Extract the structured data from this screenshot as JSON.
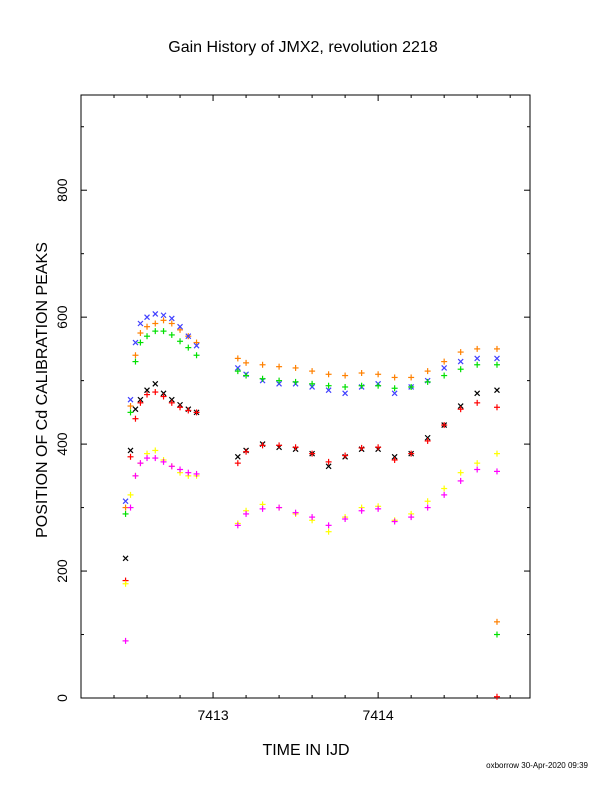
{
  "chart_data": {
    "type": "scatter",
    "title": "Gain History of JMX2, revolution 2218",
    "xlabel": "TIME IN IJD",
    "ylabel": "POSITION OF Cd CALIBRATION PEAKS",
    "footer": "oxborrow 30-Apr-2020 09:39",
    "xlim": [
      7412.2,
      7414.92
    ],
    "ylim": [
      0,
      950
    ],
    "x_ticks": [
      7413,
      7414
    ],
    "x_tick_labels": [
      "7413",
      "7414"
    ],
    "y_ticks": [
      0,
      200,
      400,
      600,
      800
    ],
    "y_tick_labels": [
      "0",
      "200",
      "400",
      "600",
      "800"
    ],
    "grid": false,
    "legend": "none",
    "series": [
      {
        "color": "#ff8000",
        "marker": "+",
        "x": [
          7412.47,
          7412.5,
          7412.53,
          7412.56,
          7412.6,
          7412.65,
          7412.7,
          7412.75,
          7412.8,
          7412.85,
          7412.9,
          7413.15,
          7413.2,
          7413.3,
          7413.4,
          7413.5,
          7413.6,
          7413.7,
          7413.8,
          7413.9,
          7414.0,
          7414.1,
          7414.2,
          7414.3,
          7414.4,
          7414.5,
          7414.6,
          7414.72
        ],
        "y": [
          300,
          460,
          540,
          575,
          585,
          590,
          595,
          590,
          580,
          570,
          560,
          535,
          528,
          525,
          522,
          520,
          515,
          510,
          508,
          512,
          510,
          505,
          505,
          515,
          530,
          545,
          550,
          550
        ]
      },
      {
        "color": "#4040ff",
        "marker": "x",
        "x": [
          7412.47,
          7412.5,
          7412.53,
          7412.56,
          7412.6,
          7412.65,
          7412.7,
          7412.75,
          7412.8,
          7412.85,
          7412.9,
          7413.15,
          7413.2,
          7413.3,
          7413.4,
          7413.5,
          7413.6,
          7413.7,
          7413.8,
          7413.9,
          7414.0,
          7414.1,
          7414.2,
          7414.3,
          7414.4,
          7414.5,
          7414.6,
          7414.72
        ],
        "y": [
          310,
          470,
          560,
          590,
          600,
          605,
          603,
          598,
          585,
          570,
          555,
          520,
          510,
          500,
          495,
          495,
          490,
          485,
          480,
          490,
          495,
          480,
          490,
          500,
          520,
          530,
          535,
          535
        ]
      },
      {
        "color": "#00e000",
        "marker": "+",
        "x": [
          7412.47,
          7412.5,
          7412.53,
          7412.56,
          7412.6,
          7412.65,
          7412.7,
          7412.75,
          7412.8,
          7412.85,
          7412.9,
          7413.15,
          7413.2,
          7413.3,
          7413.4,
          7413.5,
          7413.6,
          7413.7,
          7413.8,
          7413.9,
          7414.0,
          7414.1,
          7414.2,
          7414.3,
          7414.4,
          7414.5,
          7414.6,
          7414.72
        ],
        "y": [
          290,
          450,
          530,
          560,
          570,
          578,
          578,
          572,
          562,
          552,
          540,
          515,
          508,
          503,
          500,
          498,
          495,
          492,
          490,
          492,
          492,
          488,
          490,
          498,
          508,
          518,
          525,
          525
        ]
      },
      {
        "color": "#000000",
        "marker": "x",
        "x": [
          7412.47,
          7412.5,
          7412.53,
          7412.56,
          7412.6,
          7412.65,
          7412.7,
          7412.75,
          7412.8,
          7412.85,
          7412.9,
          7413.15,
          7413.2,
          7413.3,
          7413.4,
          7413.5,
          7413.6,
          7413.7,
          7413.8,
          7413.9,
          7414.0,
          7414.1,
          7414.2,
          7414.3,
          7414.4,
          7414.5,
          7414.6,
          7414.72
        ],
        "y": [
          220,
          390,
          455,
          470,
          485,
          495,
          480,
          470,
          462,
          455,
          450,
          380,
          390,
          400,
          395,
          392,
          385,
          365,
          380,
          392,
          392,
          380,
          385,
          410,
          430,
          460,
          480,
          485
        ]
      },
      {
        "color": "#ff0000",
        "marker": "+",
        "x": [
          7412.47,
          7412.5,
          7412.53,
          7412.56,
          7412.6,
          7412.65,
          7412.7,
          7412.75,
          7412.8,
          7412.85,
          7412.9,
          7413.15,
          7413.2,
          7413.3,
          7413.4,
          7413.5,
          7413.6,
          7413.7,
          7413.8,
          7413.9,
          7414.0,
          7414.1,
          7414.2,
          7414.3,
          7414.4,
          7414.5,
          7414.6,
          7414.72
        ],
        "y": [
          185,
          380,
          440,
          465,
          478,
          482,
          475,
          465,
          458,
          453,
          450,
          370,
          388,
          398,
          398,
          395,
          385,
          372,
          382,
          394,
          395,
          375,
          385,
          405,
          430,
          455,
          465,
          458
        ]
      },
      {
        "color": "#ffff00",
        "marker": "+",
        "x": [
          7412.47,
          7412.5,
          7412.53,
          7412.56,
          7412.6,
          7412.65,
          7412.7,
          7412.75,
          7412.8,
          7412.85,
          7412.9,
          7413.15,
          7413.2,
          7413.3,
          7413.4,
          7413.5,
          7413.6,
          7413.7,
          7413.8,
          7413.9,
          7414.0,
          7414.1,
          7414.2,
          7414.3,
          7414.4,
          7414.5,
          7414.6,
          7414.72
        ],
        "y": [
          180,
          320,
          350,
          370,
          385,
          390,
          375,
          365,
          355,
          350,
          350,
          275,
          295,
          305,
          300,
          290,
          280,
          262,
          285,
          300,
          302,
          280,
          290,
          310,
          330,
          355,
          370,
          385
        ]
      },
      {
        "color": "#ff00ff",
        "marker": "+",
        "x": [
          7412.47,
          7412.5,
          7412.53,
          7412.56,
          7412.6,
          7412.65,
          7412.7,
          7412.75,
          7412.8,
          7412.85,
          7412.9,
          7413.15,
          7413.2,
          7413.3,
          7413.4,
          7413.5,
          7413.6,
          7413.7,
          7413.8,
          7413.9,
          7414.0,
          7414.1,
          7414.2,
          7414.3,
          7414.4,
          7414.5,
          7414.6,
          7414.72
        ],
        "y": [
          90,
          300,
          350,
          370,
          378,
          378,
          372,
          365,
          360,
          355,
          353,
          272,
          290,
          298,
          300,
          292,
          285,
          272,
          282,
          295,
          298,
          278,
          285,
          300,
          320,
          342,
          360,
          357
        ]
      },
      {
        "color": "#ff8000",
        "marker": "+",
        "x": [
          7414.72
        ],
        "y": [
          120
        ]
      },
      {
        "color": "#00e000",
        "marker": "+",
        "x": [
          7414.72
        ],
        "y": [
          100
        ]
      },
      {
        "color": "#ff0000",
        "marker": "+",
        "x": [
          7414.72
        ],
        "y": [
          2
        ]
      }
    ]
  }
}
